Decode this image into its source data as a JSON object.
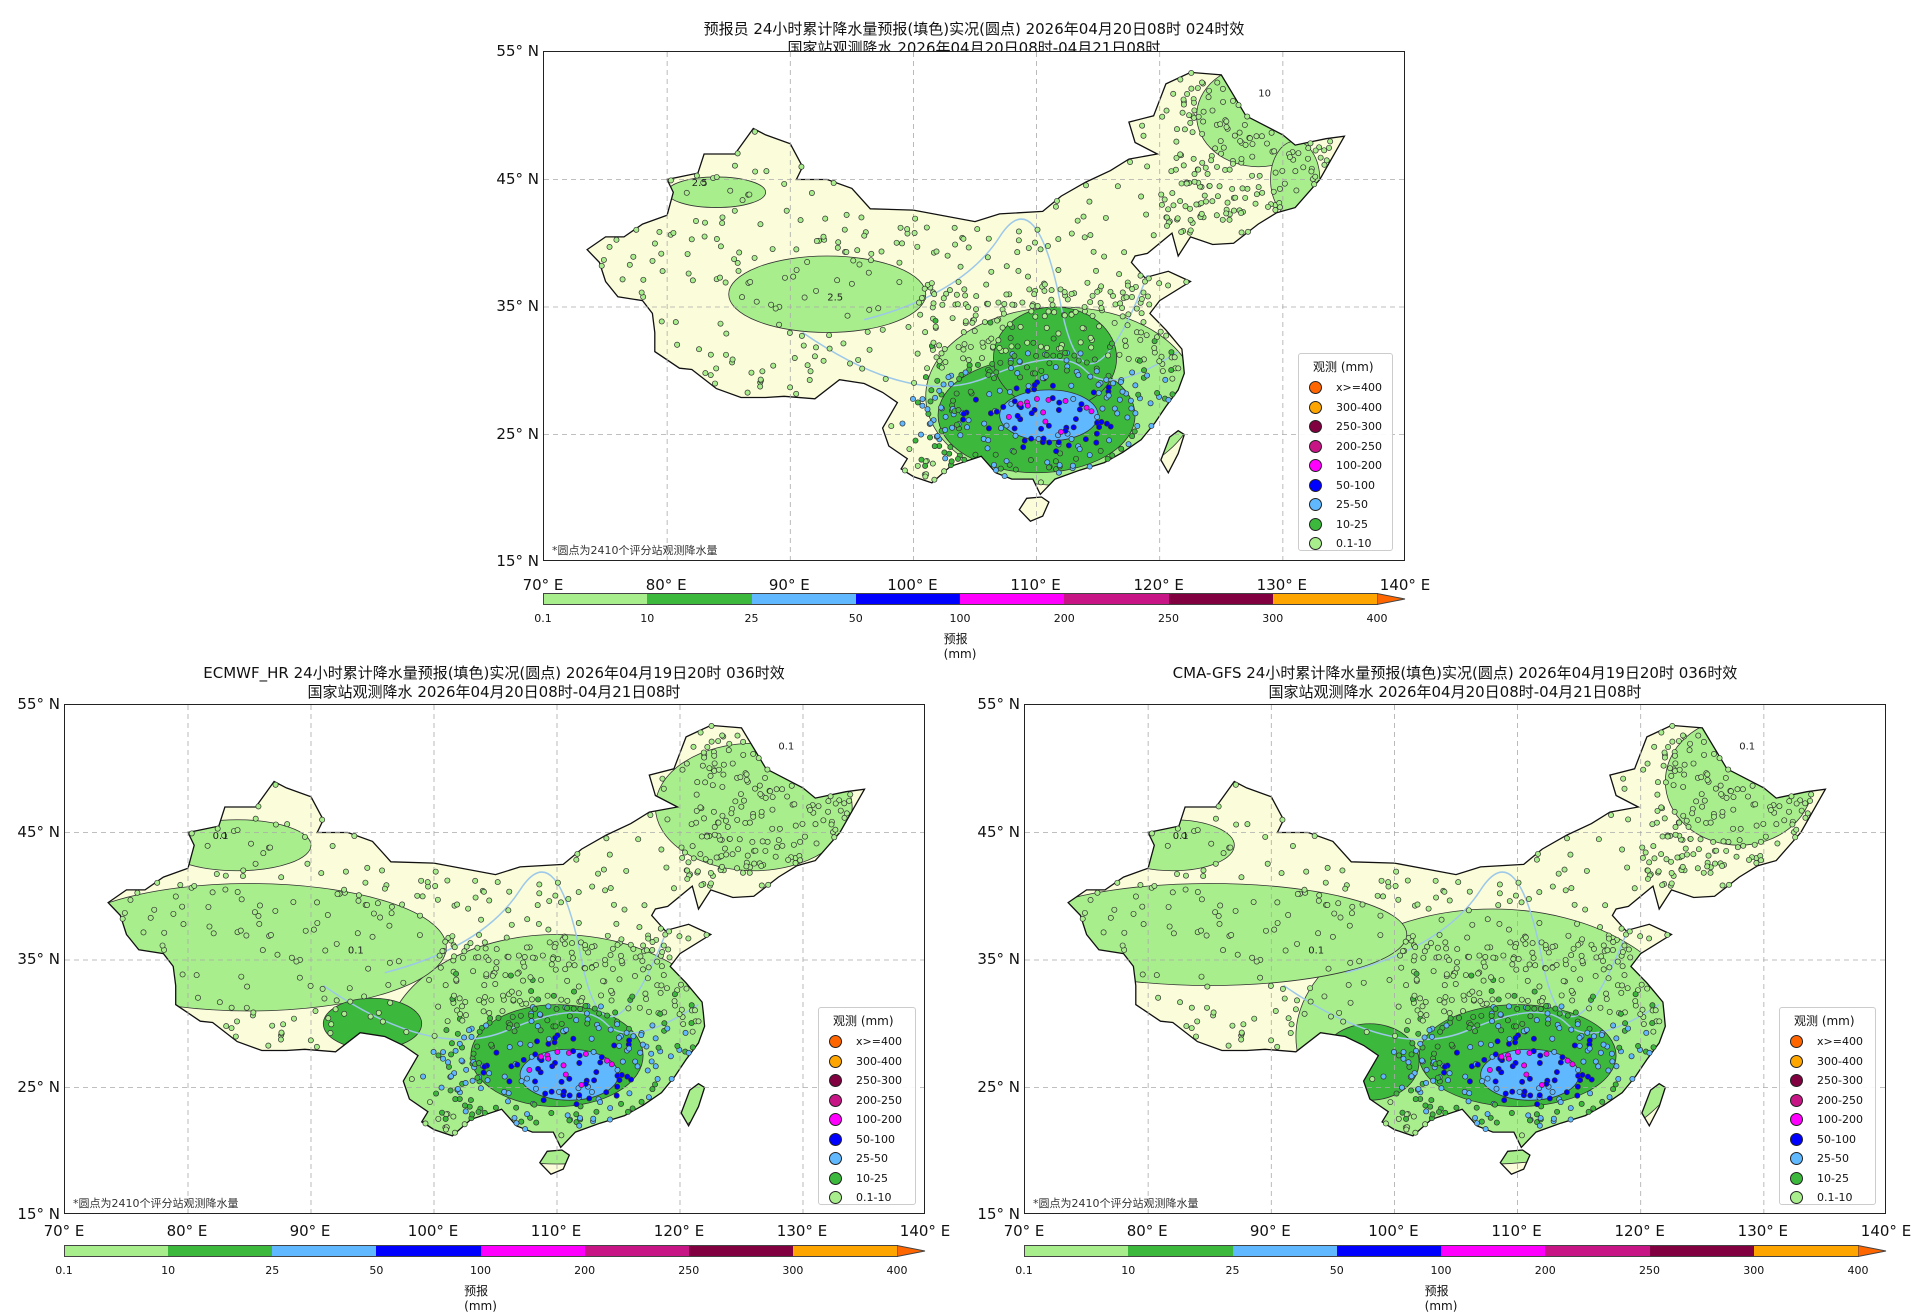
{
  "panels": [
    {
      "title1": "预报员 24小时累计降水量预报(填色)实况(圆点) 2026年04月20日08时 024时效",
      "title2": "国家站观测降水 2026年04月20日08时-04月21日08时"
    },
    {
      "title1": "ECMWF_HR 24小时累计降水量预报(填色)实况(圆点) 2026年04月19日20时 036时效",
      "title2": "国家站观测降水 2026年04月20日08时-04月21日08时"
    },
    {
      "title1": "CMA-GFS 24小时累计降水量预报(填色)实况(圆点) 2026年04月19日20时 036时效",
      "title2": "国家站观测降水 2026年04月20日08时-04月21日08时"
    }
  ],
  "note": "*圆点为2410个评分站观测降水量",
  "legend": {
    "title": "观测 (mm)",
    "items": [
      {
        "label": "x>=400",
        "color": "#ff6600"
      },
      {
        "label": "300-400",
        "color": "#ffa500"
      },
      {
        "label": "250-300",
        "color": "#800040"
      },
      {
        "label": "200-250",
        "color": "#c71585"
      },
      {
        "label": "100-200",
        "color": "#ff00ff"
      },
      {
        "label": "50-100",
        "color": "#0000ff"
      },
      {
        "label": "25-50",
        "color": "#60b8ff"
      },
      {
        "label": "10-25",
        "color": "#3cb93c"
      },
      {
        "label": "0.1-10",
        "color": "#a8ee8c"
      }
    ]
  },
  "colorbar": {
    "label": "预报(mm)",
    "ticks": [
      "0.1",
      "10",
      "25",
      "50",
      "100",
      "200",
      "250",
      "300",
      "400"
    ],
    "colors": [
      "#a8ee8c",
      "#3cb93c",
      "#60b8ff",
      "#0000ff",
      "#ff00ff",
      "#c71585",
      "#800040",
      "#ffa500"
    ],
    "extend_color": "#ff6600"
  },
  "chart_data": {
    "type": "heatmap",
    "xlim": [
      70,
      140
    ],
    "ylim": [
      15,
      55
    ],
    "xticks": [
      "70° E",
      "80° E",
      "90° E",
      "100° E",
      "110° E",
      "120° E",
      "130° E",
      "140° E"
    ],
    "yticks": [
      "55° N",
      "45° N",
      "35° N",
      "25° N",
      "15° N"
    ],
    "contour_labels": [
      "0.1",
      "2.5",
      "10"
    ],
    "grid": true
  }
}
